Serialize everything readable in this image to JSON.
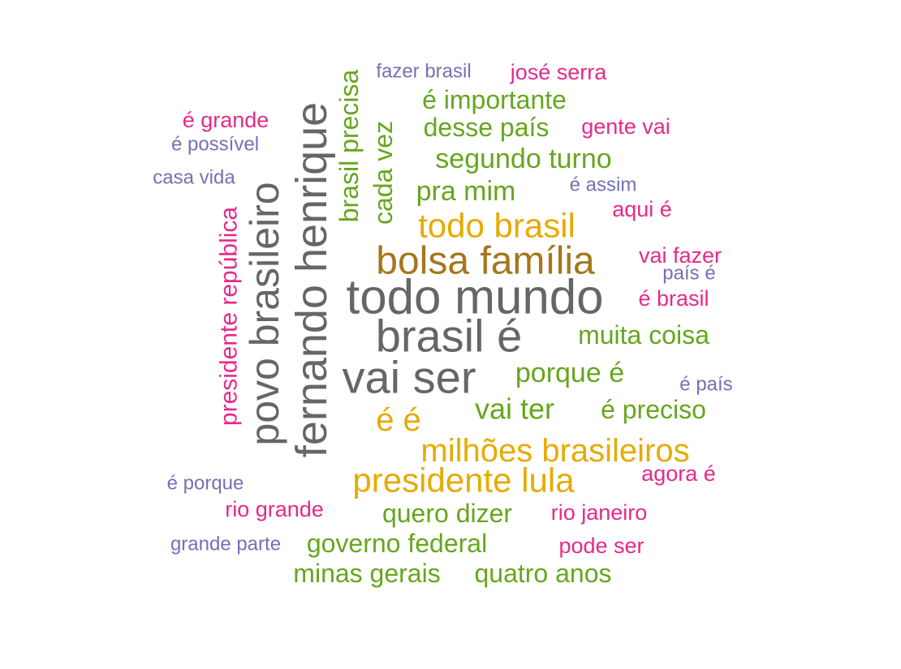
{
  "chart_data": {
    "type": "wordcloud",
    "palette": {
      "gray": "#666666",
      "brown": "#A6761D",
      "gold": "#E6AB02",
      "green": "#66A61E",
      "magenta": "#E7298A",
      "purple": "#7570B3"
    },
    "words": [
      {
        "text": "todo mundo",
        "color": "gray",
        "rotated": false
      },
      {
        "text": "brasil é",
        "color": "gray",
        "rotated": false
      },
      {
        "text": "fernando henrique",
        "color": "gray",
        "rotated": true
      },
      {
        "text": "vai ser",
        "color": "gray",
        "rotated": false
      },
      {
        "text": "povo brasileiro",
        "color": "gray",
        "rotated": true
      },
      {
        "text": "bolsa família",
        "color": "brown",
        "rotated": false
      },
      {
        "text": "todo brasil",
        "color": "gold",
        "rotated": false
      },
      {
        "text": "presidente lula",
        "color": "gold",
        "rotated": false
      },
      {
        "text": "milhões brasileiros",
        "color": "gold",
        "rotated": false
      },
      {
        "text": "é é",
        "color": "gold",
        "rotated": false
      },
      {
        "text": "vai ter",
        "color": "green",
        "rotated": false
      },
      {
        "text": "segundo turno",
        "color": "green",
        "rotated": false
      },
      {
        "text": "pra mim",
        "color": "green",
        "rotated": false
      },
      {
        "text": "porque é",
        "color": "green",
        "rotated": false
      },
      {
        "text": "muita coisa",
        "color": "green",
        "rotated": false
      },
      {
        "text": "quero dizer",
        "color": "green",
        "rotated": false
      },
      {
        "text": "governo federal",
        "color": "green",
        "rotated": false
      },
      {
        "text": "minas gerais",
        "color": "green",
        "rotated": false
      },
      {
        "text": "quatro anos",
        "color": "green",
        "rotated": false
      },
      {
        "text": "é importante",
        "color": "green",
        "rotated": false
      },
      {
        "text": "desse país",
        "color": "green",
        "rotated": false
      },
      {
        "text": "é preciso",
        "color": "green",
        "rotated": false
      },
      {
        "text": "cada vez",
        "color": "green",
        "rotated": true
      },
      {
        "text": "brasil precisa",
        "color": "green",
        "rotated": true
      },
      {
        "text": "presidente república",
        "color": "magenta",
        "rotated": true
      },
      {
        "text": "josé serra",
        "color": "magenta",
        "rotated": false
      },
      {
        "text": "é grande",
        "color": "magenta",
        "rotated": false
      },
      {
        "text": "gente vai",
        "color": "magenta",
        "rotated": false
      },
      {
        "text": "aqui é",
        "color": "magenta",
        "rotated": false
      },
      {
        "text": "vai fazer",
        "color": "magenta",
        "rotated": false
      },
      {
        "text": "é brasil",
        "color": "magenta",
        "rotated": false
      },
      {
        "text": "agora é",
        "color": "magenta",
        "rotated": false
      },
      {
        "text": "rio grande",
        "color": "magenta",
        "rotated": false
      },
      {
        "text": "rio janeiro",
        "color": "magenta",
        "rotated": false
      },
      {
        "text": "pode ser",
        "color": "magenta",
        "rotated": false
      },
      {
        "text": "fazer brasil",
        "color": "purple",
        "rotated": false
      },
      {
        "text": "é possível",
        "color": "purple",
        "rotated": false
      },
      {
        "text": "casa vida",
        "color": "purple",
        "rotated": false
      },
      {
        "text": "é assim",
        "color": "purple",
        "rotated": false
      },
      {
        "text": "país é",
        "color": "purple",
        "rotated": false
      },
      {
        "text": "é país",
        "color": "purple",
        "rotated": false
      },
      {
        "text": "é porque",
        "color": "purple",
        "rotated": false
      },
      {
        "text": "grande parte",
        "color": "purple",
        "rotated": false
      }
    ]
  }
}
